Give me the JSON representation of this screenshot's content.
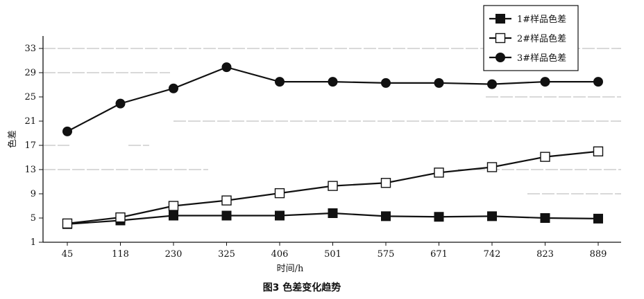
{
  "chart_data": {
    "type": "line",
    "title": "",
    "caption": "图3 色差变化趋势",
    "xlabel": "时间/h",
    "ylabel": "色差",
    "categories": [
      "45",
      "118",
      "230",
      "325",
      "406",
      "501",
      "575",
      "671",
      "742",
      "823",
      "889"
    ],
    "yticks": [
      1,
      5,
      9,
      13,
      17,
      21,
      25,
      29,
      33
    ],
    "ylim": [
      1,
      35
    ],
    "grid": "y (partial, faded)",
    "legend_position": "top-right",
    "series": [
      {
        "name": "1#样品色差",
        "marker": "filled-square",
        "values": [
          4.0,
          4.6,
          5.4,
          5.4,
          5.4,
          5.8,
          5.3,
          5.2,
          5.3,
          5.0,
          4.9
        ]
      },
      {
        "name": "2#样品色差",
        "marker": "open-square",
        "values": [
          4.1,
          5.1,
          7.0,
          7.9,
          9.1,
          10.3,
          10.8,
          12.5,
          13.4,
          15.1,
          16.0
        ]
      },
      {
        "name": "3#样品色差",
        "marker": "filled-circle",
        "values": [
          19.3,
          23.9,
          26.4,
          29.9,
          27.5,
          27.5,
          27.3,
          27.3,
          27.1,
          27.5,
          27.5
        ]
      }
    ]
  }
}
